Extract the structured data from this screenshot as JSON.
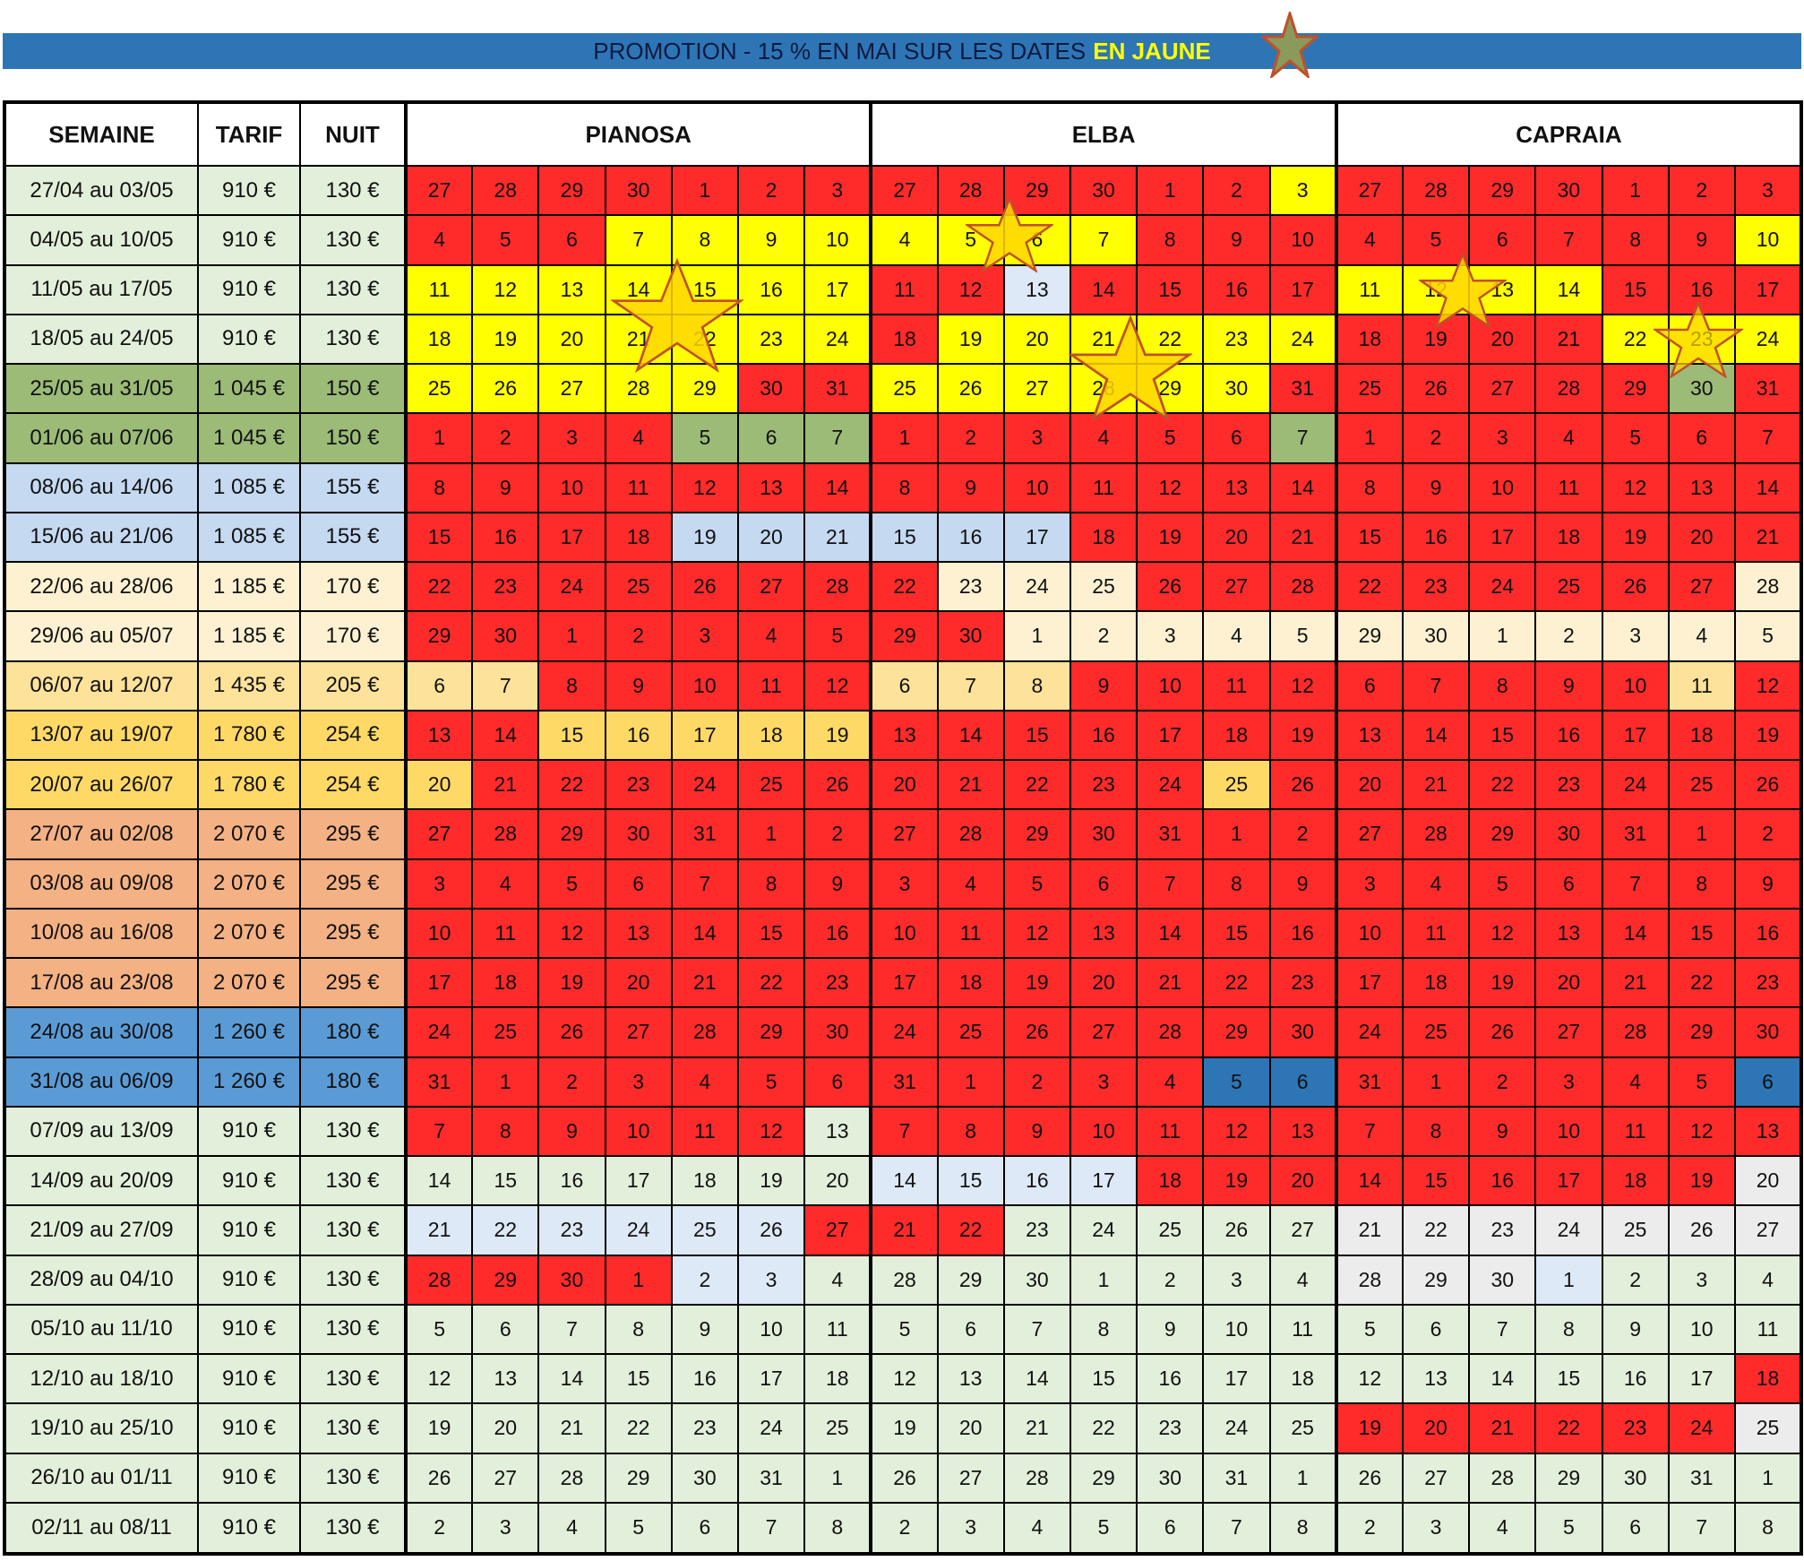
{
  "banner": {
    "text": "PROMOTION - 15 % EN MAI SUR LES DATES",
    "highlight": "EN JAUNE",
    "star_icon": "star-icon"
  },
  "headers": {
    "semaine": "SEMAINE",
    "tarif": "TARIF",
    "nuit": "NUIT"
  },
  "groups": [
    "PIANOSA",
    "ELBA",
    "CAPRAIA"
  ],
  "palette": {
    "R": "#ff2a2a",
    "Y": "#ffff00",
    "G": "#9bbb77",
    "B": "#c5d9f1",
    "L": "#dde9f7",
    "C": "#fdf1d2",
    "O": "#fde29a",
    "D": "#2e75b6",
    "M": "#e2efda",
    "W": "#ececec",
    "P": "#f4b183",
    "S": "#5b9bd5",
    "K": "#ffd966"
  },
  "star_icons": [
    "star-icon",
    "star-icon",
    "star-icon",
    "star-icon",
    "star-icon"
  ],
  "rows": [
    {
      "week": "27/04 au 03/05",
      "tarif": "910 €",
      "nuit": "130 €",
      "bg": "M",
      "days": [
        27,
        28,
        29,
        30,
        1,
        2,
        3
      ],
      "colors": [
        "RRRRRRR",
        "RRRRRRY",
        "RRRRRRR"
      ]
    },
    {
      "week": "04/05 au 10/05",
      "tarif": "910 €",
      "nuit": "130 €",
      "bg": "M",
      "days": [
        4,
        5,
        6,
        7,
        8,
        9,
        10
      ],
      "colors": [
        "RRRYYYY",
        "YYYYRRR",
        "RRRRRRY"
      ]
    },
    {
      "week": "11/05 au 17/05",
      "tarif": "910 €",
      "nuit": "130 €",
      "bg": "M",
      "days": [
        11,
        12,
        13,
        14,
        15,
        16,
        17
      ],
      "colors": [
        "YYYYYYY",
        "RRLRRRR",
        "YYYYRRR"
      ]
    },
    {
      "week": "18/05 au 24/05",
      "tarif": "910 €",
      "nuit": "130 €",
      "bg": "M",
      "days": [
        18,
        19,
        20,
        21,
        22,
        23,
        24
      ],
      "colors": [
        "YYYYYYY",
        "RYYYYYY",
        "RRRRYYY"
      ]
    },
    {
      "week": "25/05 au 31/05",
      "tarif": "1 045 €",
      "nuit": "150 €",
      "bg": "G",
      "days": [
        25,
        26,
        27,
        28,
        29,
        30,
        31
      ],
      "colors": [
        "YYYYYRR",
        "YYYYYYR",
        "RRRRRGR"
      ]
    },
    {
      "week": "01/06 au 07/06",
      "tarif": "1 045 €",
      "nuit": "150 €",
      "bg": "G",
      "days": [
        1,
        2,
        3,
        4,
        5,
        6,
        7
      ],
      "colors": [
        "RRRRGGG",
        "RRRRRRG",
        "RRRRRRR"
      ]
    },
    {
      "week": "08/06 au 14/06",
      "tarif": "1 085 €",
      "nuit": "155 €",
      "bg": "B",
      "days": [
        8,
        9,
        10,
        11,
        12,
        13,
        14
      ],
      "colors": [
        "RRRRRRR",
        "RRRRRRR",
        "RRRRRRR"
      ]
    },
    {
      "week": "15/06 au 21/06",
      "tarif": "1 085 €",
      "nuit": "155 €",
      "bg": "B",
      "days": [
        15,
        16,
        17,
        18,
        19,
        20,
        21
      ],
      "colors": [
        "RRRRBBB",
        "BBBRRRR",
        "RRRRRRR"
      ]
    },
    {
      "week": "22/06 au 28/06",
      "tarif": "1 185 €",
      "nuit": "170 €",
      "bg": "C",
      "days": [
        22,
        23,
        24,
        25,
        26,
        27,
        28
      ],
      "colors": [
        "RRRRRRR",
        "RCCCRRR",
        "RRRRRRC"
      ]
    },
    {
      "week": "29/06 au 05/07",
      "tarif": "1 185 €",
      "nuit": "170 €",
      "bg": "C",
      "days": [
        29,
        30,
        1,
        2,
        3,
        4,
        5
      ],
      "colors": [
        "RRRRRRR",
        "RRCCCCC",
        "CCCCCCC"
      ]
    },
    {
      "week": "06/07 au 12/07",
      "tarif": "1 435 €",
      "nuit": "205 €",
      "bg": "O",
      "days": [
        6,
        7,
        8,
        9,
        10,
        11,
        12
      ],
      "colors": [
        "OORRRRR",
        "OOORRRR",
        "RRRRROR"
      ]
    },
    {
      "week": "13/07 au 19/07",
      "tarif": "1 780 €",
      "nuit": "254 €",
      "bg": "K",
      "days": [
        13,
        14,
        15,
        16,
        17,
        18,
        19
      ],
      "colors": [
        "RRKKKKK",
        "RRRRRRR",
        "RRRRRRR"
      ]
    },
    {
      "week": "20/07 au 26/07",
      "tarif": "1 780 €",
      "nuit": "254 €",
      "bg": "K",
      "days": [
        20,
        21,
        22,
        23,
        24,
        25,
        26
      ],
      "colors": [
        "KRRRRRR",
        "RRRRRKR",
        "RRRRRRR"
      ]
    },
    {
      "week": "27/07 au 02/08",
      "tarif": "2 070 €",
      "nuit": "295 €",
      "bg": "P",
      "days": [
        27,
        28,
        29,
        30,
        31,
        1,
        2
      ],
      "colors": [
        "RRRRRRR",
        "RRRRRRR",
        "RRRRRRR"
      ]
    },
    {
      "week": "03/08 au 09/08",
      "tarif": "2 070 €",
      "nuit": "295 €",
      "bg": "P",
      "days": [
        3,
        4,
        5,
        6,
        7,
        8,
        9
      ],
      "colors": [
        "RRRRRRR",
        "RRRRRRR",
        "RRRRRRR"
      ]
    },
    {
      "week": "10/08 au 16/08",
      "tarif": "2 070 €",
      "nuit": "295 €",
      "bg": "P",
      "days": [
        10,
        11,
        12,
        13,
        14,
        15,
        16
      ],
      "colors": [
        "RRRRRRR",
        "RRRRRRR",
        "RRRRRRR"
      ]
    },
    {
      "week": "17/08 au 23/08",
      "tarif": "2 070 €",
      "nuit": "295 €",
      "bg": "P",
      "days": [
        17,
        18,
        19,
        20,
        21,
        22,
        23
      ],
      "colors": [
        "RRRRRRR",
        "RRRRRRR",
        "RRRRRRR"
      ]
    },
    {
      "week": "24/08 au 30/08",
      "tarif": "1 260 €",
      "nuit": "180 €",
      "bg": "S",
      "days": [
        24,
        25,
        26,
        27,
        28,
        29,
        30
      ],
      "colors": [
        "RRRRRRR",
        "RRRRRRR",
        "RRRRRRR"
      ]
    },
    {
      "week": "31/08 au 06/09",
      "tarif": "1 260 €",
      "nuit": "180 €",
      "bg": "S",
      "days": [
        31,
        1,
        2,
        3,
        4,
        5,
        6
      ],
      "colors": [
        "RRRRRRR",
        "RRRRRDD",
        "RRRRRRD"
      ]
    },
    {
      "week": "07/09 au 13/09",
      "tarif": "910 €",
      "nuit": "130 €",
      "bg": "M",
      "days": [
        7,
        8,
        9,
        10,
        11,
        12,
        13
      ],
      "colors": [
        "RRRRRRM",
        "RRRRRRR",
        "RRRRRRR"
      ]
    },
    {
      "week": "14/09 au 20/09",
      "tarif": "910 €",
      "nuit": "130 €",
      "bg": "M",
      "days": [
        14,
        15,
        16,
        17,
        18,
        19,
        20
      ],
      "colors": [
        "MMMMMMM",
        "LLLLRRR",
        "RRRRRRW"
      ]
    },
    {
      "week": "21/09 au 27/09",
      "tarif": "910 €",
      "nuit": "130 €",
      "bg": "M",
      "days": [
        21,
        22,
        23,
        24,
        25,
        26,
        27
      ],
      "colors": [
        "LLLLLLR",
        "RRMMMMM",
        "WWWWWWW"
      ]
    },
    {
      "week": "28/09 au 04/10",
      "tarif": "910 €",
      "nuit": "130 €",
      "bg": "M",
      "days": [
        28,
        29,
        30,
        1,
        2,
        3,
        4
      ],
      "colors": [
        "RRRRLLM",
        "MMMMMMM",
        "WWWLMMM"
      ]
    },
    {
      "week": "05/10 au 11/10",
      "tarif": "910 €",
      "nuit": "130 €",
      "bg": "M",
      "days": [
        5,
        6,
        7,
        8,
        9,
        10,
        11
      ],
      "colors": [
        "MMMMMMM",
        "MMMMMMM",
        "MMMMMMM"
      ]
    },
    {
      "week": "12/10 au 18/10",
      "tarif": "910 €",
      "nuit": "130 €",
      "bg": "M",
      "days": [
        12,
        13,
        14,
        15,
        16,
        17,
        18
      ],
      "colors": [
        "MMMMMMM",
        "MMMMMMM",
        "MMMMMMR"
      ]
    },
    {
      "week": "19/10 au 25/10",
      "tarif": "910 €",
      "nuit": "130 €",
      "bg": "M",
      "days": [
        19,
        20,
        21,
        22,
        23,
        24,
        25
      ],
      "colors": [
        "MMMMMMM",
        "MMMMMMM",
        "RRRRRRW"
      ]
    },
    {
      "week": "26/10 au 01/11",
      "tarif": "910 €",
      "nuit": "130 €",
      "bg": "M",
      "days": [
        26,
        27,
        28,
        29,
        30,
        31,
        1
      ],
      "colors": [
        "MMMMMMM",
        "MMMMMMM",
        "MMMMMMM"
      ]
    },
    {
      "week": "02/11 au 08/11",
      "tarif": "910 €",
      "nuit": "130 €",
      "bg": "M",
      "days": [
        2,
        3,
        4,
        5,
        6,
        7,
        8
      ],
      "colors": [
        "MMMMMMM",
        "MMMMMMM",
        "MMMMMMM"
      ]
    }
  ]
}
